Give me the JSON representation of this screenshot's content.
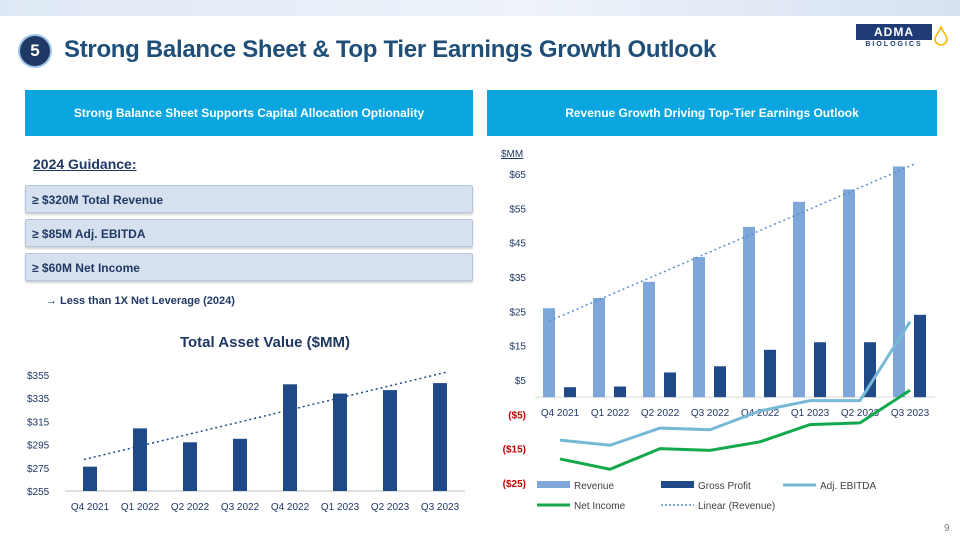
{
  "slide": {
    "number": "5",
    "title": "Strong Balance Sheet & Top Tier Earnings Growth Outlook",
    "page": "9",
    "logo_main": "ADMA",
    "logo_sub": "BIOLOGICS"
  },
  "colors": {
    "accent": "#0ba6e0",
    "navy": "#1f3864",
    "revenue": "#7ea6d8",
    "gross": "#1f4a87",
    "ebitda": "#76b9d6",
    "netincome": "#13a84b",
    "negative": "#c00000"
  },
  "left_banner": "Strong Balance Sheet Supports Capital Allocation Optionality",
  "right_banner": "Revenue Growth Driving Top-Tier Earnings Outlook",
  "guidance": {
    "heading": "2024 Guidance:",
    "items": [
      "≥ $320M Total Revenue",
      "≥ $85M Adj. EBITDA",
      "≥ $60M Net Income"
    ],
    "leverage_note": "→ Less than 1X Net Leverage (2024)"
  },
  "chart_data": [
    {
      "type": "bar",
      "title": "Total Asset Value ($MM)",
      "categories": [
        "Q4 2021",
        "Q1 2022",
        "Q2 2022",
        "Q3 2022",
        "Q4 2022",
        "Q1 2023",
        "Q2 2023",
        "Q3 2023"
      ],
      "values": [
        276,
        309,
        297,
        300,
        347,
        339,
        342,
        348
      ],
      "ylim": [
        255,
        355
      ],
      "yticks": [
        "$255",
        "$275",
        "$295",
        "$315",
        "$335",
        "$355"
      ],
      "trendline": "linear",
      "grid": false
    },
    {
      "type": "bar",
      "unit_label": "$MM",
      "categories": [
        "Q4 2021",
        "Q1 2022",
        "Q2 2022",
        "Q3 2022",
        "Q4 2022",
        "Q1 2023",
        "Q2 2023",
        "Q3 2023"
      ],
      "ylim": [
        -25,
        65
      ],
      "yticks": [
        "$65",
        "$55",
        "$45",
        "$35",
        "$25",
        "$15",
        "$5",
        "($5)",
        "($15)",
        "($25)"
      ],
      "series": [
        {
          "name": "Revenue",
          "kind": "bar",
          "values": [
            25.9,
            28.9,
            33.6,
            40.8,
            49.6,
            56.9,
            60.5,
            67.2
          ]
        },
        {
          "name": "Gross Profit",
          "kind": "bar",
          "values": [
            2.9,
            3.1,
            7.2,
            9.0,
            13.8,
            16.0,
            16.0,
            24.0
          ]
        },
        {
          "name": "Adj. EBITDA",
          "kind": "line",
          "values": [
            -12.5,
            -14.0,
            -9.0,
            -9.5,
            -4.0,
            -1.0,
            -1.0,
            22.0
          ]
        },
        {
          "name": "Net Income",
          "kind": "line",
          "values": [
            -18.0,
            -21.0,
            -15.0,
            -15.5,
            -13.0,
            -8.0,
            -7.5,
            2.0
          ]
        },
        {
          "name": "Linear (Revenue)",
          "kind": "trendline"
        }
      ],
      "legend": [
        "Revenue",
        "Gross Profit",
        "Adj. EBITDA",
        "Net Income",
        "Linear (Revenue)"
      ],
      "legend_position": "bottom"
    }
  ]
}
